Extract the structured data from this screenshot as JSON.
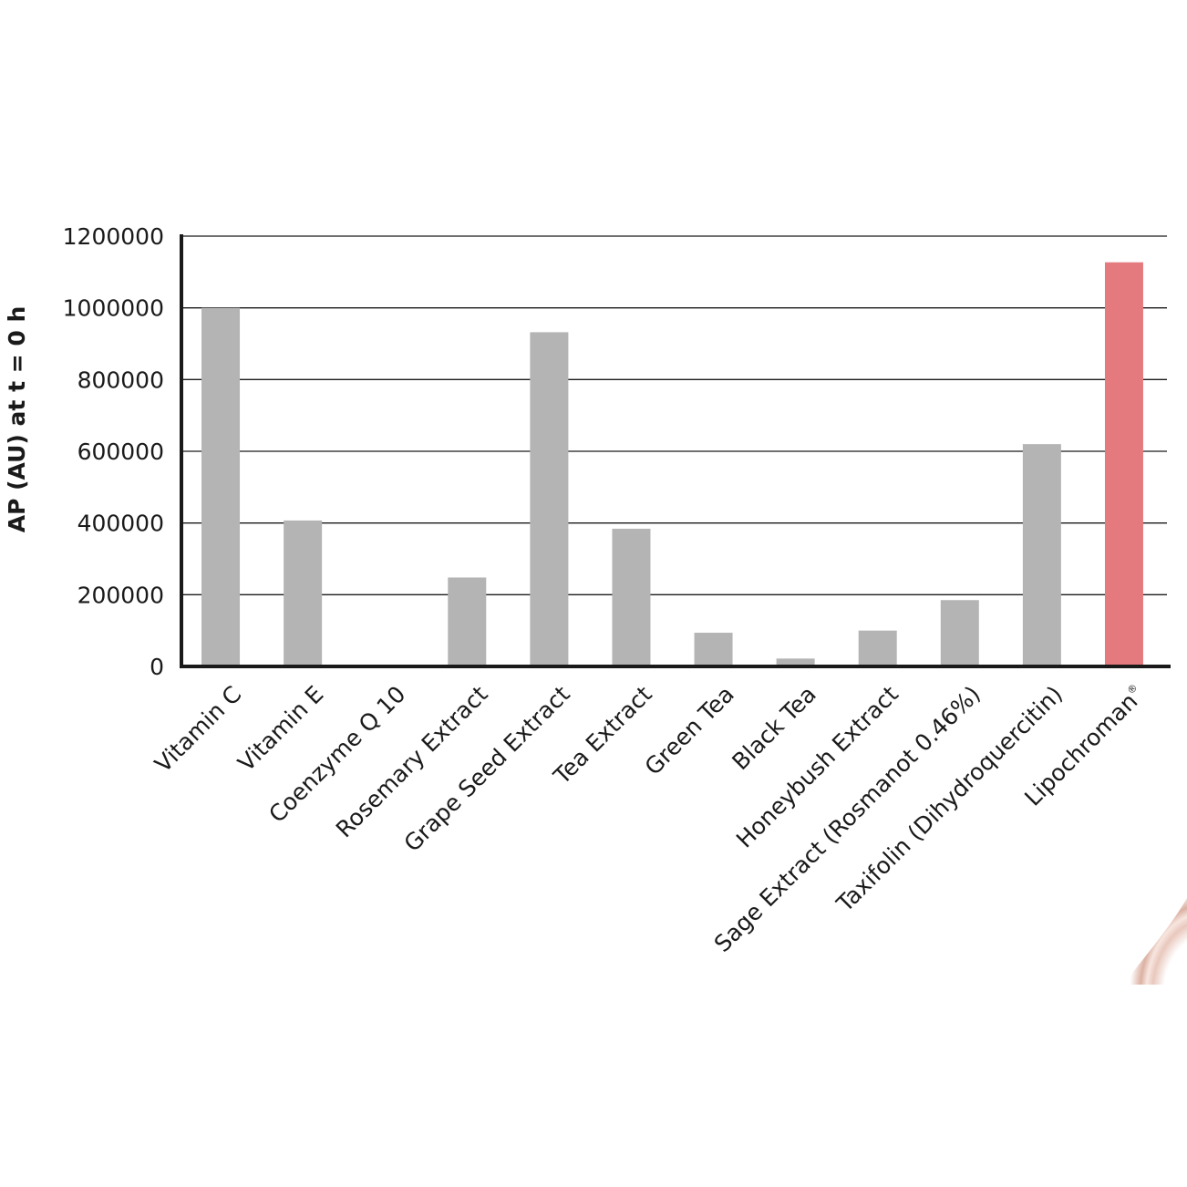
{
  "chart_data": {
    "type": "bar",
    "ylabel": "AP (AU) at t = 0 h",
    "xlabel": "",
    "ylim": [
      0,
      1200000
    ],
    "yticks": [
      0,
      200000,
      400000,
      600000,
      800000,
      1000000,
      1200000
    ],
    "ytick_labels": [
      "0",
      "200000",
      "400000",
      "600000",
      "800000",
      "1000000",
      "1200000"
    ],
    "grid": true,
    "categories": [
      "Vitamin C",
      "Vitamin E",
      "Coenzyme Q 10",
      "Rosemary Extract",
      "Grape Seed Extract",
      "Tea Extract",
      "Green Tea",
      "Black Tea",
      "Honeybush Extract",
      "Sage Extract (Rosmanot 0.46%)",
      "Taxifolin (Dihydroquercitin)",
      "Lipochroman"
    ],
    "category_superscripts": [
      "",
      "",
      "",
      "",
      "",
      "",
      "",
      "",
      "",
      "",
      "",
      "®"
    ],
    "values": [
      1000000,
      407000,
      0,
      248000,
      932000,
      384000,
      94000,
      22000,
      100000,
      185000,
      620000,
      1127000
    ],
    "bar_colors": [
      "#b4b4b4",
      "#b4b4b4",
      "#b4b4b4",
      "#b4b4b4",
      "#b4b4b4",
      "#b4b4b4",
      "#b4b4b4",
      "#b4b4b4",
      "#b4b4b4",
      "#b4b4b4",
      "#b4b4b4",
      "#e57a7e"
    ]
  }
}
